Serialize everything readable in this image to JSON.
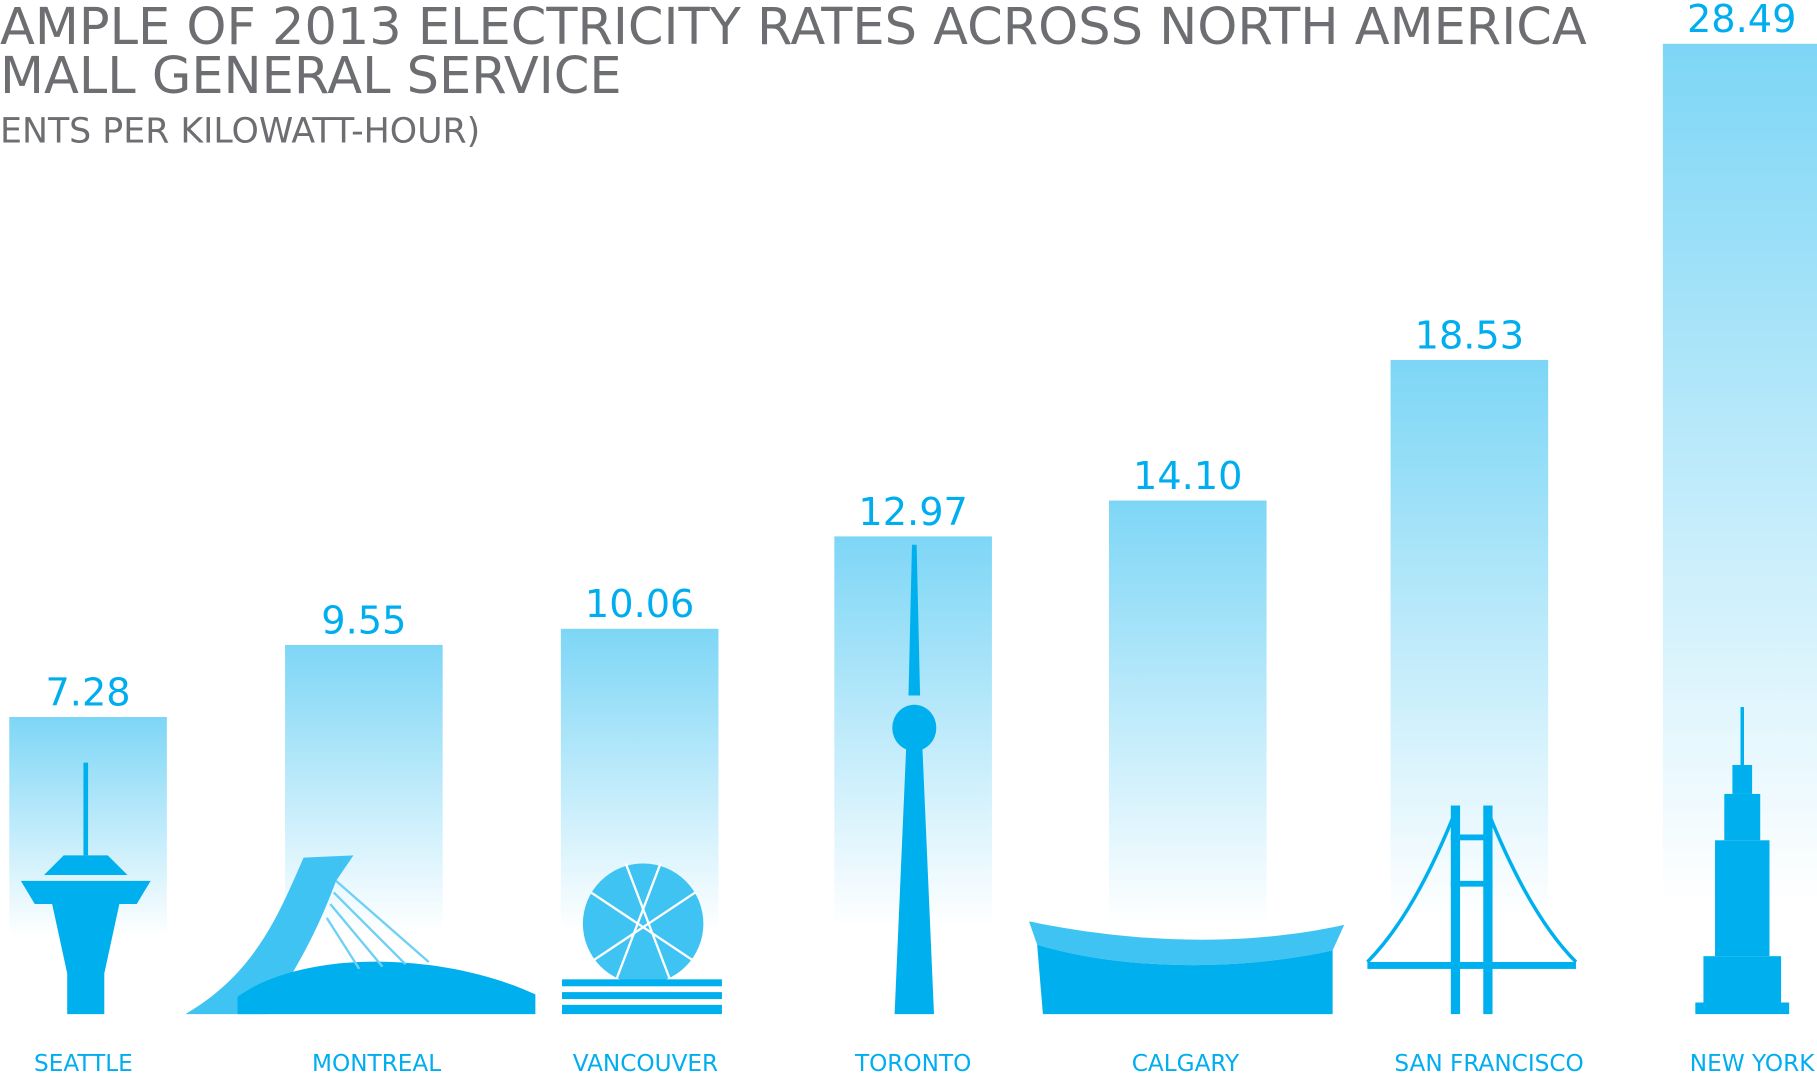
{
  "chart_data": {
    "type": "bar",
    "title": "AMPLE OF 2013 ELECTRICITY RATES ACROSS NORTH AMERICA",
    "subtitle": "MALL GENERAL SERVICE",
    "unit_note": "ENTS PER KILOWATT-HOUR)",
    "categories": [
      "SEATTLE",
      "MONTREAL",
      "VANCOUVER",
      "TORONTO",
      "CALGARY",
      "SAN FRANCISCO",
      "NEW YORK"
    ],
    "values": [
      7.28,
      9.55,
      10.06,
      12.97,
      14.1,
      18.53,
      28.49
    ],
    "value_labels": [
      "7.28",
      "9.55",
      "10.06",
      "12.97",
      "14.10",
      "18.53",
      "28.49"
    ],
    "color": "#7dd6f6"
  }
}
